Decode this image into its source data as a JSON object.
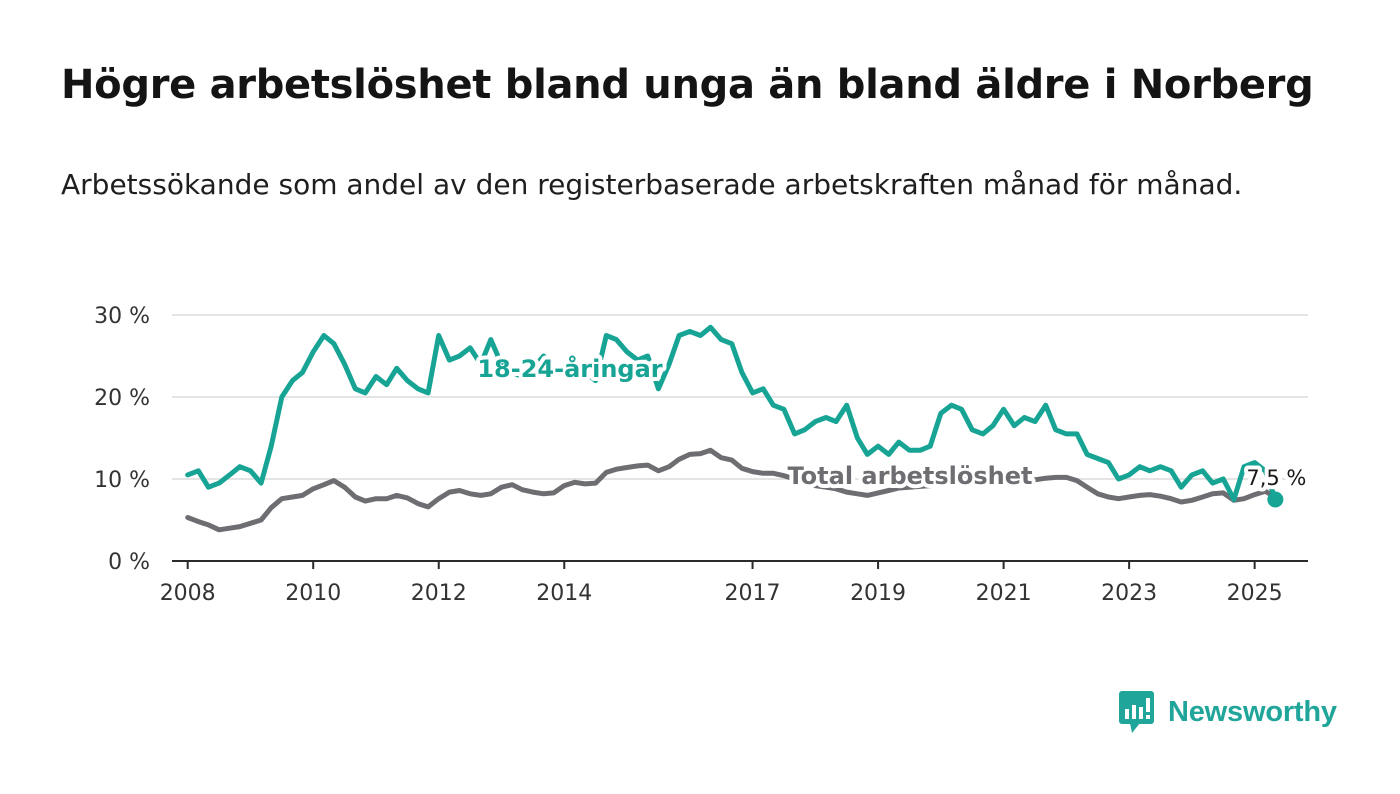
{
  "title": "Högre arbetslöshet bland unga än bland äldre i Norberg",
  "subtitle": "Arbetssökande som andel av den registerbaserade arbetskraften månad för månad.",
  "brand": {
    "name": "Newsworthy",
    "color": "#1fa59a",
    "icon": "bar-chart-speech-bubble-icon"
  },
  "chart_data": {
    "type": "line",
    "yticks": [
      "0 %",
      "10 %",
      "20 %",
      "30 %"
    ],
    "ylim": [
      0,
      30
    ],
    "xticks": [
      "2008",
      "2010",
      "2012",
      "2014",
      "2017",
      "2019",
      "2021",
      "2023",
      "2025"
    ],
    "xlim": [
      2007.75,
      2025.85
    ],
    "grid": true,
    "last_value_label": "7,5 %",
    "series": [
      {
        "name": "18-24-åringar",
        "color": "#17a495",
        "points": [
          [
            2008.0,
            10.5
          ],
          [
            2008.17,
            11.0
          ],
          [
            2008.33,
            9.0
          ],
          [
            2008.5,
            9.5
          ],
          [
            2008.67,
            10.5
          ],
          [
            2008.83,
            11.5
          ],
          [
            2009.0,
            11.0
          ],
          [
            2009.17,
            9.5
          ],
          [
            2009.33,
            14.0
          ],
          [
            2009.5,
            20.0
          ],
          [
            2009.67,
            22.0
          ],
          [
            2009.83,
            23.0
          ],
          [
            2010.0,
            25.5
          ],
          [
            2010.17,
            27.5
          ],
          [
            2010.33,
            26.5
          ],
          [
            2010.5,
            24.0
          ],
          [
            2010.67,
            21.0
          ],
          [
            2010.83,
            20.5
          ],
          [
            2011.0,
            22.5
          ],
          [
            2011.17,
            21.5
          ],
          [
            2011.33,
            23.5
          ],
          [
            2011.5,
            22.0
          ],
          [
            2011.67,
            21.0
          ],
          [
            2011.83,
            20.5
          ],
          [
            2012.0,
            27.5
          ],
          [
            2012.17,
            24.5
          ],
          [
            2012.33,
            25.0
          ],
          [
            2012.5,
            26.0
          ],
          [
            2012.67,
            24.0
          ],
          [
            2012.83,
            27.0
          ],
          [
            2013.0,
            24.0
          ],
          [
            2013.17,
            23.0
          ],
          [
            2013.33,
            22.5
          ],
          [
            2013.5,
            23.5
          ],
          [
            2013.67,
            25.0
          ],
          [
            2013.83,
            23.5
          ],
          [
            2014.0,
            23.0
          ],
          [
            2014.17,
            22.5
          ],
          [
            2014.33,
            23.0
          ],
          [
            2014.5,
            22.0
          ],
          [
            2014.67,
            27.5
          ],
          [
            2014.83,
            27.0
          ],
          [
            2015.0,
            25.5
          ],
          [
            2015.17,
            24.5
          ],
          [
            2015.33,
            25.0
          ],
          [
            2015.5,
            21.0
          ],
          [
            2015.67,
            24.0
          ],
          [
            2015.83,
            27.5
          ],
          [
            2016.0,
            28.0
          ],
          [
            2016.17,
            27.5
          ],
          [
            2016.33,
            28.5
          ],
          [
            2016.5,
            27.0
          ],
          [
            2016.67,
            26.5
          ],
          [
            2016.83,
            23.0
          ],
          [
            2017.0,
            20.5
          ],
          [
            2017.17,
            21.0
          ],
          [
            2017.33,
            19.0
          ],
          [
            2017.5,
            18.5
          ],
          [
            2017.67,
            15.5
          ],
          [
            2017.83,
            16.0
          ],
          [
            2018.0,
            17.0
          ],
          [
            2018.17,
            17.5
          ],
          [
            2018.33,
            17.0
          ],
          [
            2018.5,
            19.0
          ],
          [
            2018.67,
            15.0
          ],
          [
            2018.83,
            13.0
          ],
          [
            2019.0,
            14.0
          ],
          [
            2019.17,
            13.0
          ],
          [
            2019.33,
            14.5
          ],
          [
            2019.5,
            13.5
          ],
          [
            2019.67,
            13.5
          ],
          [
            2019.83,
            14.0
          ],
          [
            2020.0,
            18.0
          ],
          [
            2020.17,
            19.0
          ],
          [
            2020.33,
            18.5
          ],
          [
            2020.5,
            16.0
          ],
          [
            2020.67,
            15.5
          ],
          [
            2020.83,
            16.5
          ],
          [
            2021.0,
            18.5
          ],
          [
            2021.17,
            16.5
          ],
          [
            2021.33,
            17.5
          ],
          [
            2021.5,
            17.0
          ],
          [
            2021.67,
            19.0
          ],
          [
            2021.83,
            16.0
          ],
          [
            2022.0,
            15.5
          ],
          [
            2022.17,
            15.5
          ],
          [
            2022.33,
            13.0
          ],
          [
            2022.5,
            12.5
          ],
          [
            2022.67,
            12.0
          ],
          [
            2022.83,
            10.0
          ],
          [
            2023.0,
            10.5
          ],
          [
            2023.17,
            11.5
          ],
          [
            2023.33,
            11.0
          ],
          [
            2023.5,
            11.5
          ],
          [
            2023.67,
            11.0
          ],
          [
            2023.83,
            9.0
          ],
          [
            2024.0,
            10.5
          ],
          [
            2024.17,
            11.0
          ],
          [
            2024.33,
            9.5
          ],
          [
            2024.5,
            10.0
          ],
          [
            2024.67,
            7.5
          ],
          [
            2024.83,
            11.5
          ],
          [
            2025.0,
            12.0
          ],
          [
            2025.17,
            11.0
          ],
          [
            2025.33,
            7.5
          ]
        ]
      },
      {
        "name": "Total arbetslöshet",
        "color": "#6e6d72",
        "points": [
          [
            2008.0,
            5.3
          ],
          [
            2008.17,
            4.8
          ],
          [
            2008.33,
            4.4
          ],
          [
            2008.5,
            3.8
          ],
          [
            2008.67,
            4.0
          ],
          [
            2008.83,
            4.2
          ],
          [
            2009.0,
            4.6
          ],
          [
            2009.17,
            5.0
          ],
          [
            2009.33,
            6.5
          ],
          [
            2009.5,
            7.6
          ],
          [
            2009.67,
            7.8
          ],
          [
            2009.83,
            8.0
          ],
          [
            2010.0,
            8.8
          ],
          [
            2010.17,
            9.3
          ],
          [
            2010.33,
            9.8
          ],
          [
            2010.5,
            9.0
          ],
          [
            2010.67,
            7.8
          ],
          [
            2010.83,
            7.3
          ],
          [
            2011.0,
            7.6
          ],
          [
            2011.17,
            7.6
          ],
          [
            2011.33,
            8.0
          ],
          [
            2011.5,
            7.7
          ],
          [
            2011.67,
            7.0
          ],
          [
            2011.83,
            6.6
          ],
          [
            2012.0,
            7.6
          ],
          [
            2012.17,
            8.4
          ],
          [
            2012.33,
            8.6
          ],
          [
            2012.5,
            8.2
          ],
          [
            2012.67,
            8.0
          ],
          [
            2012.83,
            8.2
          ],
          [
            2013.0,
            9.0
          ],
          [
            2013.17,
            9.3
          ],
          [
            2013.33,
            8.7
          ],
          [
            2013.5,
            8.4
          ],
          [
            2013.67,
            8.2
          ],
          [
            2013.83,
            8.3
          ],
          [
            2014.0,
            9.2
          ],
          [
            2014.17,
            9.6
          ],
          [
            2014.33,
            9.4
          ],
          [
            2014.5,
            9.5
          ],
          [
            2014.67,
            10.8
          ],
          [
            2014.83,
            11.2
          ],
          [
            2015.0,
            11.4
          ],
          [
            2015.17,
            11.6
          ],
          [
            2015.33,
            11.7
          ],
          [
            2015.5,
            11.0
          ],
          [
            2015.67,
            11.5
          ],
          [
            2015.83,
            12.4
          ],
          [
            2016.0,
            13.0
          ],
          [
            2016.17,
            13.1
          ],
          [
            2016.33,
            13.5
          ],
          [
            2016.5,
            12.6
          ],
          [
            2016.67,
            12.3
          ],
          [
            2016.83,
            11.3
          ],
          [
            2017.0,
            10.9
          ],
          [
            2017.17,
            10.7
          ],
          [
            2017.33,
            10.7
          ],
          [
            2017.5,
            10.4
          ],
          [
            2017.67,
            10.0
          ],
          [
            2017.83,
            9.6
          ],
          [
            2018.0,
            9.2
          ],
          [
            2018.17,
            9.0
          ],
          [
            2018.33,
            8.8
          ],
          [
            2018.5,
            8.4
          ],
          [
            2018.67,
            8.2
          ],
          [
            2018.83,
            8.0
          ],
          [
            2019.0,
            8.3
          ],
          [
            2019.17,
            8.6
          ],
          [
            2019.33,
            8.9
          ],
          [
            2019.5,
            9.0
          ],
          [
            2019.67,
            9.1
          ],
          [
            2019.83,
            9.2
          ],
          [
            2020.0,
            9.6
          ],
          [
            2020.17,
            9.9
          ],
          [
            2020.33,
            10.0
          ],
          [
            2020.5,
            10.0
          ],
          [
            2020.67,
            9.8
          ],
          [
            2020.83,
            9.6
          ],
          [
            2021.0,
            9.7
          ],
          [
            2021.17,
            9.7
          ],
          [
            2021.33,
            9.8
          ],
          [
            2021.5,
            9.9
          ],
          [
            2021.67,
            10.1
          ],
          [
            2021.83,
            10.2
          ],
          [
            2022.0,
            10.2
          ],
          [
            2022.17,
            9.8
          ],
          [
            2022.33,
            9.0
          ],
          [
            2022.5,
            8.2
          ],
          [
            2022.67,
            7.8
          ],
          [
            2022.83,
            7.6
          ],
          [
            2023.0,
            7.8
          ],
          [
            2023.17,
            8.0
          ],
          [
            2023.33,
            8.1
          ],
          [
            2023.5,
            7.9
          ],
          [
            2023.67,
            7.6
          ],
          [
            2023.83,
            7.2
          ],
          [
            2024.0,
            7.4
          ],
          [
            2024.17,
            7.8
          ],
          [
            2024.33,
            8.2
          ],
          [
            2024.5,
            8.3
          ],
          [
            2024.67,
            7.4
          ],
          [
            2024.83,
            7.6
          ],
          [
            2025.0,
            8.1
          ],
          [
            2025.17,
            8.5
          ],
          [
            2025.33,
            7.8
          ]
        ]
      }
    ]
  }
}
